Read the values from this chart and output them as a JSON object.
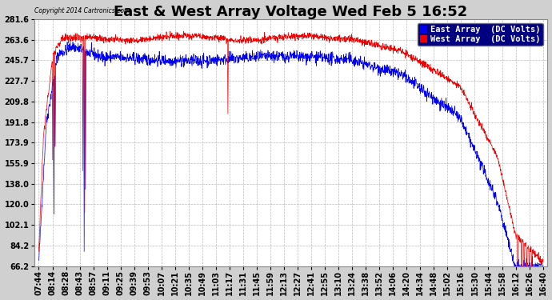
{
  "title": "East & West Array Voltage Wed Feb 5 16:52",
  "copyright": "Copyright 2014 Cartronics.com",
  "legend": [
    {
      "label": "East Array  (DC Volts)",
      "color": "#0000dd"
    },
    {
      "label": "West Array  (DC Volts)",
      "color": "#dd0000"
    }
  ],
  "ylim": [
    66.2,
    281.6
  ],
  "yticks": [
    281.6,
    263.6,
    245.7,
    227.7,
    209.8,
    191.8,
    173.9,
    155.9,
    138.0,
    120.0,
    102.1,
    84.2,
    66.2
  ],
  "xtick_labels": [
    "07:44",
    "08:14",
    "08:28",
    "08:43",
    "08:57",
    "09:11",
    "09:25",
    "09:39",
    "09:53",
    "10:07",
    "10:21",
    "10:35",
    "10:49",
    "11:03",
    "11:17",
    "11:31",
    "11:45",
    "11:59",
    "12:13",
    "12:27",
    "12:41",
    "12:55",
    "13:10",
    "13:24",
    "13:38",
    "13:52",
    "14:06",
    "14:20",
    "14:34",
    "14:48",
    "15:02",
    "15:16",
    "15:30",
    "15:44",
    "15:58",
    "16:12",
    "16:26",
    "16:40"
  ],
  "background_color": "#d0d0d0",
  "plot_bg_color": "#ffffff",
  "grid_color": "#aaaaaa",
  "title_fontsize": 13,
  "axis_fontsize": 7,
  "legend_fontsize": 7.5,
  "east_color": "#0000ee",
  "west_color": "#ee0000"
}
